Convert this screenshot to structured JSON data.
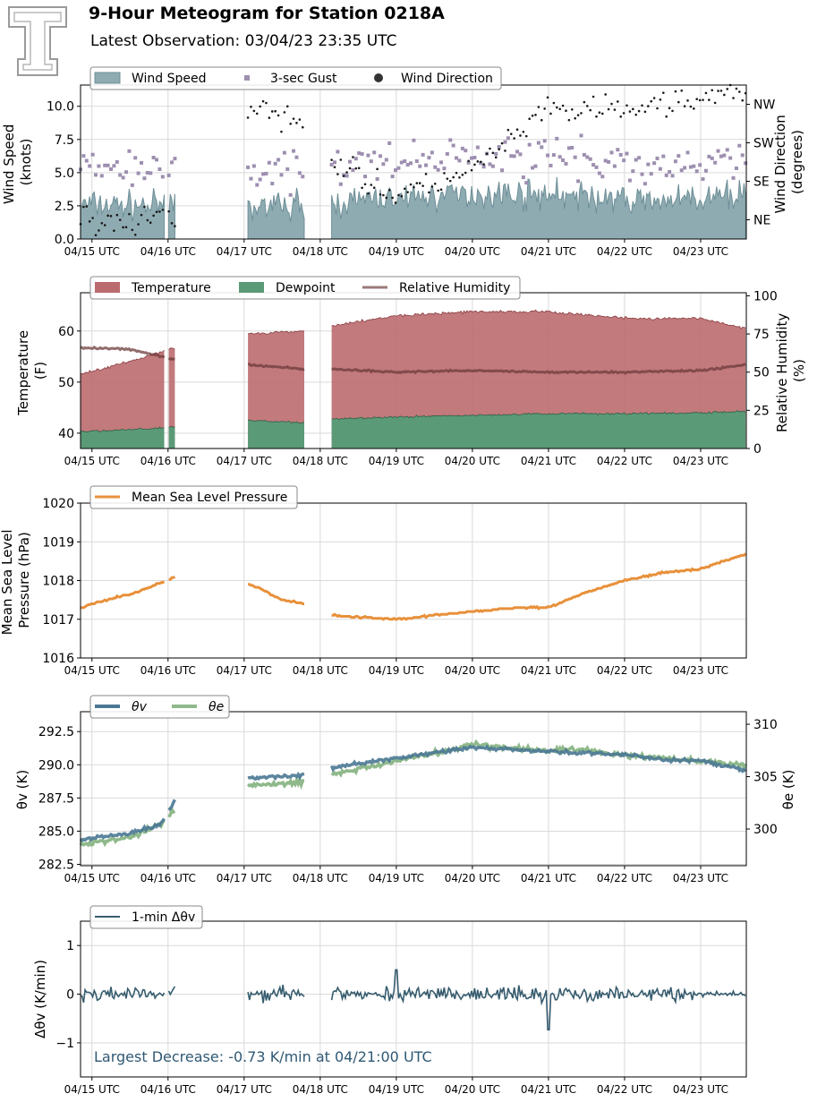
{
  "header": {
    "title": "9-Hour Meteogram for Station 0218A",
    "subtitle": "Latest Observation: 03/04/23 23:35 UTC",
    "logo_text": "T"
  },
  "colors": {
    "wind_fill": "#8fabb2",
    "wind_line": "#6d8f97",
    "gust": "#9d8fb0",
    "direction": "#1a1a1a",
    "temperature": "#bb6b6e",
    "temperature_line": "#8a3d40",
    "dewpoint": "#5b9a77",
    "dewpoint_line": "#2f5f45",
    "rh": "#6e3b3b",
    "rh_legend": "#9a7a7a",
    "pressure": "#e8903a",
    "theta_v": "#4a7894",
    "theta_e": "#8fb98b",
    "dtheta": "#365c6e",
    "annotation": "#2f5874"
  },
  "time_axis": {
    "ticks": [
      "04/15 UTC",
      "04/16 UTC",
      "04/17 UTC",
      "04/18 UTC",
      "04/19 UTC",
      "04/20 UTC",
      "04/21 UTC",
      "04/22 UTC",
      "04/23 UTC"
    ],
    "start_hour": -0.15,
    "end_hour": 8.6,
    "segments": [
      [
        -0.15,
        0.95
      ],
      [
        1.0,
        1.1
      ],
      [
        2.05,
        2.8
      ],
      [
        3.15,
        8.6
      ]
    ]
  },
  "chart_data": [
    {
      "type": "area",
      "name": "wind",
      "legend": [
        "Wind Speed",
        "3-sec Gust",
        "Wind Direction"
      ],
      "ylabel": "Wind Speed\n(knots)",
      "y2label": "Wind Direction\n(degrees)",
      "ylim": [
        0,
        11.6
      ],
      "yticks": [
        0.0,
        2.5,
        5.0,
        7.5,
        10.0
      ],
      "ytick_labels": [
        "0.0",
        "2.5",
        "5.0",
        "7.5",
        "10.0"
      ],
      "y2ticks": [
        45,
        135,
        225,
        315
      ],
      "y2tick_labels": [
        "NE",
        "SE",
        "SW",
        "NW"
      ],
      "y2lim": [
        0,
        360
      ],
      "speed_mean": [
        [
          -0.15,
          2.6
        ],
        [
          0.95,
          2.5
        ],
        [
          2.05,
          2.4
        ],
        [
          2.8,
          2.6
        ],
        [
          3.15,
          2.7
        ],
        [
          4.2,
          3.2
        ],
        [
          5.0,
          3.4
        ],
        [
          6.0,
          3.4
        ],
        [
          7.0,
          2.9
        ],
        [
          8.0,
          2.9
        ],
        [
          8.6,
          3.5
        ]
      ],
      "gust_offset": 2.0,
      "direction_mean": [
        [
          -0.15,
          45
        ],
        [
          1.1,
          40
        ],
        [
          2.05,
          300
        ],
        [
          2.8,
          270
        ],
        [
          3.15,
          180
        ],
        [
          4.0,
          100
        ],
        [
          5.0,
          160
        ],
        [
          6.0,
          300
        ],
        [
          7.0,
          300
        ],
        [
          8.0,
          330
        ],
        [
          8.6,
          340
        ]
      ],
      "grid": true
    },
    {
      "type": "area",
      "name": "temperature",
      "legend": [
        "Temperature",
        "Dewpoint",
        "Relative Humidity"
      ],
      "ylabel": "Temperature\n(F)",
      "y2label": "Relative Humidity\n(%)",
      "ylim": [
        37,
        67.5
      ],
      "yticks": [
        40,
        50,
        60
      ],
      "ytick_labels": [
        "40",
        "50",
        "60"
      ],
      "y2lim": [
        0,
        102
      ],
      "y2ticks": [
        0,
        25,
        50,
        75,
        100
      ],
      "y2tick_labels": [
        "0",
        "25",
        "50",
        "75",
        "100"
      ],
      "temperature": [
        [
          -0.15,
          51.5
        ],
        [
          0.95,
          56.0
        ],
        [
          1.0,
          56.5
        ],
        [
          1.1,
          56.5
        ],
        [
          2.05,
          59.5
        ],
        [
          2.8,
          60.0
        ],
        [
          3.15,
          61.0
        ],
        [
          4.0,
          63.0
        ],
        [
          5.0,
          63.8
        ],
        [
          6.0,
          63.8
        ],
        [
          7.0,
          62.5
        ],
        [
          8.0,
          62.5
        ],
        [
          8.6,
          60.5
        ]
      ],
      "dewpoint": [
        [
          -0.15,
          40.3
        ],
        [
          0.95,
          41.0
        ],
        [
          1.1,
          41.2
        ],
        [
          2.05,
          42.5
        ],
        [
          2.8,
          42.0
        ],
        [
          3.15,
          42.8
        ],
        [
          4.0,
          43.2
        ],
        [
          5.0,
          43.5
        ],
        [
          6.0,
          43.8
        ],
        [
          7.0,
          43.8
        ],
        [
          8.0,
          44.0
        ],
        [
          8.6,
          44.2
        ]
      ],
      "relative_humidity": [
        [
          -0.15,
          66
        ],
        [
          0.5,
          65
        ],
        [
          1.1,
          58
        ],
        [
          2.05,
          55
        ],
        [
          2.8,
          52
        ],
        [
          3.15,
          52
        ],
        [
          4.0,
          50
        ],
        [
          5.0,
          51
        ],
        [
          6.0,
          50
        ],
        [
          7.0,
          50
        ],
        [
          8.0,
          51
        ],
        [
          8.6,
          55
        ]
      ],
      "grid": true
    },
    {
      "type": "line",
      "name": "pressure",
      "legend": [
        "Mean Sea Level Pressure"
      ],
      "ylabel": "Mean Sea Level\nPressure (hPa)",
      "ylim": [
        1016,
        1020
      ],
      "yticks": [
        1016,
        1017,
        1018,
        1019,
        1020
      ],
      "ytick_labels": [
        "1016",
        "1017",
        "1018",
        "1019",
        "1020"
      ],
      "points": [
        [
          -0.15,
          1017.3
        ],
        [
          0.2,
          1017.5
        ],
        [
          0.6,
          1017.7
        ],
        [
          1.1,
          1018.1
        ],
        [
          2.05,
          1017.9
        ],
        [
          2.2,
          1017.8
        ],
        [
          2.5,
          1017.5
        ],
        [
          2.8,
          1017.4
        ],
        [
          3.15,
          1017.1
        ],
        [
          4.0,
          1017.0
        ],
        [
          4.5,
          1017.1
        ],
        [
          5.0,
          1017.2
        ],
        [
          5.6,
          1017.3
        ],
        [
          6.0,
          1017.3
        ],
        [
          6.5,
          1017.7
        ],
        [
          7.0,
          1018.0
        ],
        [
          7.5,
          1018.2
        ],
        [
          8.0,
          1018.3
        ],
        [
          8.3,
          1018.5
        ],
        [
          8.6,
          1018.7
        ]
      ],
      "grid": true
    },
    {
      "type": "line",
      "name": "theta",
      "legend": [
        "θv",
        "θe"
      ],
      "ylabel": "θv (K)",
      "y2label": "θe (K)",
      "ylim": [
        282.4,
        294.0
      ],
      "yticks": [
        282.5,
        285.0,
        287.5,
        290.0,
        292.5
      ],
      "ytick_labels": [
        "282.5",
        "285.0",
        "287.5",
        "290.0",
        "292.5"
      ],
      "y2lim": [
        296.5,
        311.2
      ],
      "y2ticks": [
        300,
        305,
        310
      ],
      "y2tick_labels": [
        "300",
        "305",
        "310"
      ],
      "theta_v": [
        [
          -0.15,
          284.4
        ],
        [
          0.5,
          284.8
        ],
        [
          0.9,
          285.5
        ],
        [
          1.1,
          287.4
        ],
        [
          2.05,
          289.0
        ],
        [
          2.8,
          289.2
        ],
        [
          3.15,
          289.8
        ],
        [
          4.0,
          290.5
        ],
        [
          5.0,
          291.3
        ],
        [
          6.0,
          291.0
        ],
        [
          6.5,
          290.9
        ],
        [
          7.0,
          290.8
        ],
        [
          7.5,
          290.4
        ],
        [
          8.0,
          290.3
        ],
        [
          8.6,
          289.6
        ]
      ],
      "theta_e": [
        [
          -0.15,
          298.5
        ],
        [
          0.5,
          299.2
        ],
        [
          0.9,
          300.5
        ],
        [
          1.1,
          302.0
        ],
        [
          2.05,
          304.2
        ],
        [
          2.8,
          304.5
        ],
        [
          3.15,
          305.2
        ],
        [
          4.0,
          306.5
        ],
        [
          5.0,
          308.0
        ],
        [
          6.0,
          307.5
        ],
        [
          6.5,
          307.6
        ],
        [
          7.0,
          307.0
        ],
        [
          7.5,
          306.8
        ],
        [
          8.0,
          306.5
        ],
        [
          8.6,
          306.0
        ]
      ],
      "grid": true
    },
    {
      "type": "line",
      "name": "dtheta",
      "legend": [
        "1-min Δθv"
      ],
      "ylabel": "Δθv (K/min)",
      "ylim": [
        -1.7,
        1.5
      ],
      "yticks": [
        -1,
        0,
        1
      ],
      "ytick_labels": [
        "−1",
        "0",
        "1"
      ],
      "annotation": "Largest Decrease: -0.73 K/min at 04/21:00 UTC",
      "min_point": [
        6.0,
        -0.73
      ],
      "max_point": [
        4.0,
        0.5
      ],
      "grid": true
    }
  ]
}
